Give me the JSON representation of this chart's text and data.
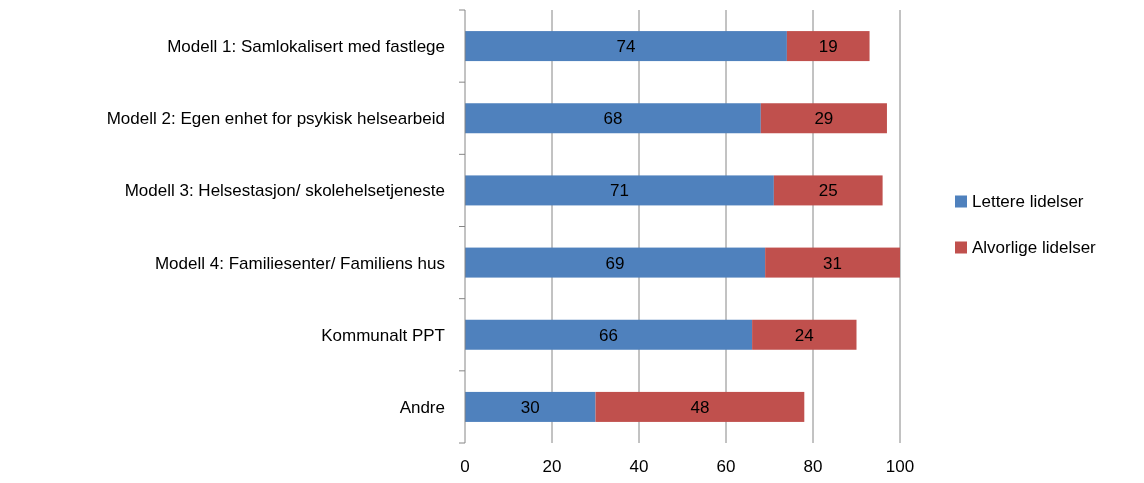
{
  "chart_data": {
    "type": "bar",
    "orientation": "horizontal",
    "stacked": true,
    "categories": [
      "Modell 1: Samlokalisert med fastlege",
      "Modell 2: Egen enhet for psykisk helsearbeid",
      "Modell 3: Helsestasjon/ skolehelsetjeneste",
      "Modell 4: Familiesenter/ Familiens hus",
      "Kommunalt PPT",
      "Andre"
    ],
    "series": [
      {
        "name": "Lettere lidelser",
        "color": "#4f81bd",
        "values": [
          74,
          68,
          71,
          69,
          66,
          30
        ]
      },
      {
        "name": "Alvorlige lidelser",
        "color": "#c0504d",
        "values": [
          19,
          29,
          25,
          31,
          24,
          48
        ]
      }
    ],
    "xlim": [
      0,
      100
    ],
    "xticks": [
      0,
      20,
      40,
      60,
      80,
      100
    ],
    "grid": "x",
    "legend": "right",
    "data_labels": true
  }
}
